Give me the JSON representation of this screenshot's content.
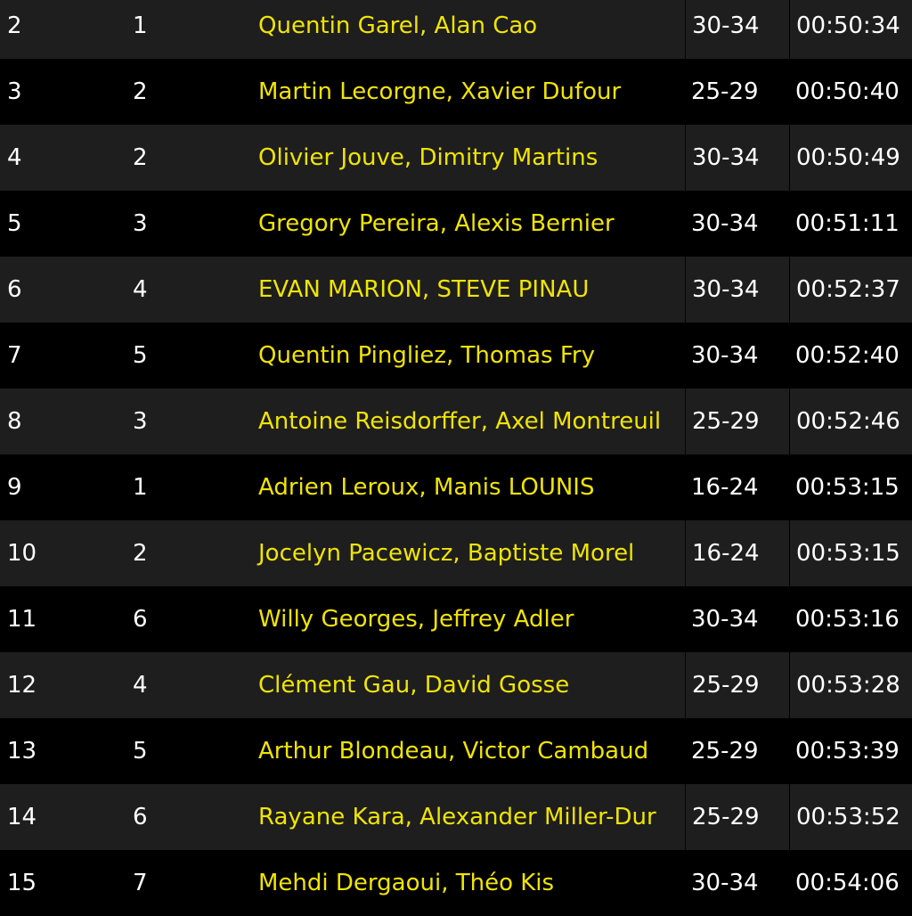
{
  "results": [
    {
      "pos": "2",
      "cat_rank": "1",
      "team": "Quentin Garel, Alan Cao",
      "age": "30-34",
      "time": "00:50:34"
    },
    {
      "pos": "3",
      "cat_rank": "2",
      "team": "Martin Lecorgne, Xavier Dufour",
      "age": "25-29",
      "time": "00:50:40"
    },
    {
      "pos": "4",
      "cat_rank": "2",
      "team": "Olivier Jouve, Dimitry Martins",
      "age": "30-34",
      "time": "00:50:49"
    },
    {
      "pos": "5",
      "cat_rank": "3",
      "team": "Gregory Pereira, Alexis Bernier",
      "age": "30-34",
      "time": "00:51:11"
    },
    {
      "pos": "6",
      "cat_rank": "4",
      "team": "EVAN MARION, STEVE PINAU",
      "age": "30-34",
      "time": "00:52:37"
    },
    {
      "pos": "7",
      "cat_rank": "5",
      "team": "Quentin Pingliez, Thomas Fry",
      "age": "30-34",
      "time": "00:52:40"
    },
    {
      "pos": "8",
      "cat_rank": "3",
      "team": "Antoine Reisdorffer, Axel Montreuil",
      "age": "25-29",
      "time": "00:52:46"
    },
    {
      "pos": "9",
      "cat_rank": "1",
      "team": "Adrien Leroux, Manis LOUNIS",
      "age": "16-24",
      "time": "00:53:15"
    },
    {
      "pos": "10",
      "cat_rank": "2",
      "team": "Jocelyn Pacewicz, Baptiste Morel",
      "age": "16-24",
      "time": "00:53:15"
    },
    {
      "pos": "11",
      "cat_rank": "6",
      "team": "Willy Georges, Jeffrey Adler",
      "age": "30-34",
      "time": "00:53:16"
    },
    {
      "pos": "12",
      "cat_rank": "4",
      "team": "Clément Gau, David Gosse",
      "age": "25-29",
      "time": "00:53:28"
    },
    {
      "pos": "13",
      "cat_rank": "5",
      "team": "Arthur Blondeau, Victor Cambaud",
      "age": "25-29",
      "time": "00:53:39"
    },
    {
      "pos": "14",
      "cat_rank": "6",
      "team": "Rayane Kara, Alexander Miller-Dur",
      "age": "25-29",
      "time": "00:53:52"
    },
    {
      "pos": "15",
      "cat_rank": "7",
      "team": "Mehdi Dergaoui, Théo Kis",
      "age": "30-34",
      "time": "00:54:06"
    }
  ],
  "colors": {
    "team_text": "#f0e400",
    "text": "#ffffff",
    "row_alt": "#1e1e1e",
    "row_dark": "#000000"
  }
}
